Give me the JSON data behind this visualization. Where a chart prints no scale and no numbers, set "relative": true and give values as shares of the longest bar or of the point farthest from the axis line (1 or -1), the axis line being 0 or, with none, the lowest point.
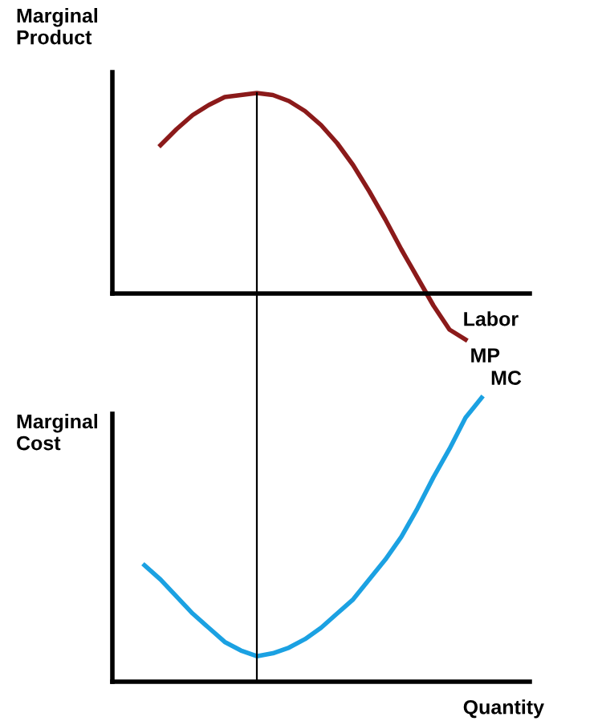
{
  "chart_data": [
    {
      "type": "line",
      "relative": true,
      "ylabel": "Marginal Product",
      "xlabel": "Labor",
      "marker": "none",
      "line_style": "solid",
      "categories": [
        null,
        null,
        null,
        null,
        null,
        null,
        null,
        null,
        null,
        null,
        null,
        null,
        null,
        null,
        null,
        null,
        null,
        null,
        null,
        null,
        null,
        null,
        null,
        null,
        null,
        null,
        null
      ],
      "series": [
        {
          "name": "MP",
          "color": "#8b1a1a",
          "values": [
            null,
            null,
            null,
            0.74,
            0.82,
            0.89,
            0.94,
            0.98,
            0.99,
            1.0,
            0.99,
            0.96,
            0.91,
            0.84,
            0.75,
            0.64,
            0.51,
            0.37,
            0.22,
            0.08,
            -0.06,
            -0.18,
            -0.23,
            null,
            null,
            null,
            null
          ]
        }
      ]
    },
    {
      "type": "line",
      "relative": true,
      "ylabel": "Marginal Cost",
      "xlabel": "Quantity",
      "marker": "none",
      "line_style": "solid",
      "categories": [
        null,
        null,
        null,
        null,
        null,
        null,
        null,
        null,
        null,
        null,
        null,
        null,
        null,
        null,
        null,
        null,
        null,
        null,
        null,
        null,
        null,
        null,
        null,
        null,
        null,
        null,
        null
      ],
      "series": [
        {
          "name": "MC",
          "color": "#1ba1e2",
          "values": [
            null,
            null,
            0.41,
            0.36,
            0.3,
            0.24,
            0.19,
            0.14,
            0.11,
            0.09,
            0.1,
            0.12,
            0.15,
            0.19,
            0.24,
            0.29,
            0.36,
            0.43,
            0.51,
            0.61,
            0.72,
            0.82,
            0.93,
            1.0,
            null,
            null,
            null
          ]
        }
      ]
    }
  ]
}
